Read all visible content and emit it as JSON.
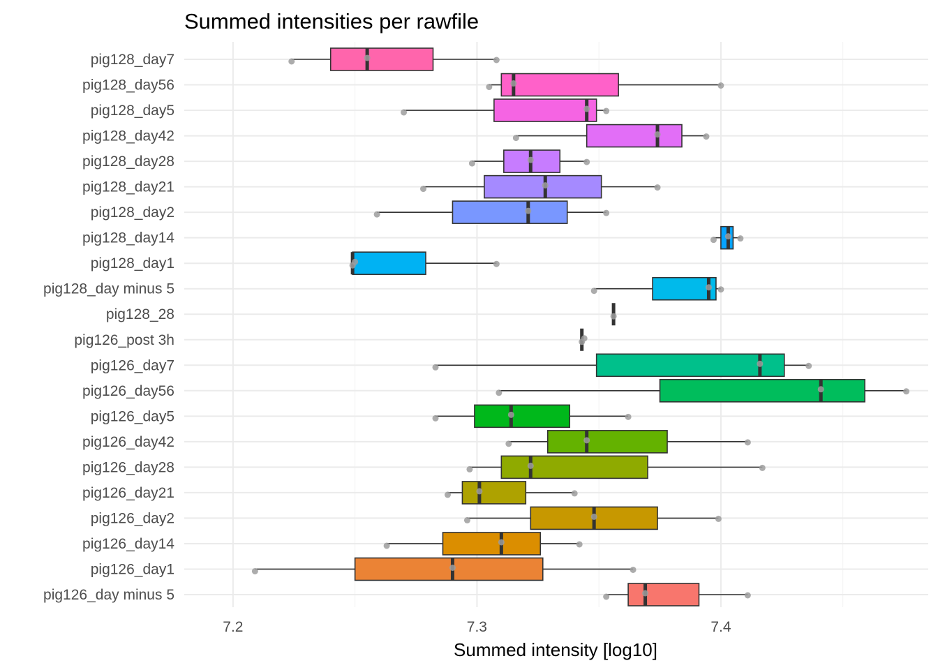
{
  "chart_data": {
    "type": "boxplot",
    "orientation": "horizontal",
    "title": "Summed intensities per rawfile",
    "xlabel": "Summed intensity [log10]",
    "ylabel": "",
    "xlim": [
      7.18,
      7.485
    ],
    "x_ticks": [
      7.2,
      7.3,
      7.4
    ],
    "x_tick_labels": [
      "7.2",
      "7.3",
      "7.4"
    ],
    "grid": true,
    "legend": "none",
    "whisker_color": "#333333",
    "point_color": "#9e9e9e",
    "categories": [
      "pig126_day minus 5",
      "pig126_day1",
      "pig126_day14",
      "pig126_day2",
      "pig126_day21",
      "pig126_day28",
      "pig126_day42",
      "pig126_day5",
      "pig126_day56",
      "pig126_day7",
      "pig126_post 3h",
      "pig128_28",
      "pig128_day minus 5",
      "pig128_day1",
      "pig128_day14",
      "pig128_day2",
      "pig128_day21",
      "pig128_day28",
      "pig128_day42",
      "pig128_day5",
      "pig128_day56",
      "pig128_day7"
    ],
    "series": [
      {
        "name": "pig126_day minus 5",
        "color": "#F8766D",
        "min": 7.353,
        "q1": 7.362,
        "median": 7.369,
        "q3": 7.391,
        "max": 7.411,
        "points": [
          7.353,
          7.369,
          7.411
        ]
      },
      {
        "name": "pig126_day1",
        "color": "#EB8335",
        "min": 7.209,
        "q1": 7.25,
        "median": 7.29,
        "q3": 7.327,
        "max": 7.364,
        "points": [
          7.209,
          7.29,
          7.364
        ]
      },
      {
        "name": "pig126_day14",
        "color": "#DB8E00",
        "min": 7.263,
        "q1": 7.286,
        "median": 7.31,
        "q3": 7.326,
        "max": 7.342,
        "points": [
          7.263,
          7.31,
          7.342
        ]
      },
      {
        "name": "pig126_day2",
        "color": "#C79800",
        "min": 7.296,
        "q1": 7.322,
        "median": 7.348,
        "q3": 7.374,
        "max": 7.399,
        "points": [
          7.296,
          7.348,
          7.399
        ]
      },
      {
        "name": "pig126_day21",
        "color": "#AEA200",
        "min": 7.288,
        "q1": 7.294,
        "median": 7.301,
        "q3": 7.32,
        "max": 7.34,
        "points": [
          7.288,
          7.301,
          7.34
        ]
      },
      {
        "name": "pig126_day28",
        "color": "#8FAA00",
        "min": 7.297,
        "q1": 7.31,
        "median": 7.322,
        "q3": 7.37,
        "max": 7.417,
        "points": [
          7.297,
          7.322,
          7.417
        ]
      },
      {
        "name": "pig126_day42",
        "color": "#64B200",
        "min": 7.313,
        "q1": 7.329,
        "median": 7.345,
        "q3": 7.378,
        "max": 7.411,
        "points": [
          7.313,
          7.345,
          7.411
        ]
      },
      {
        "name": "pig126_day5",
        "color": "#00B81B",
        "min": 7.283,
        "q1": 7.299,
        "median": 7.314,
        "q3": 7.338,
        "max": 7.362,
        "points": [
          7.283,
          7.314,
          7.362
        ]
      },
      {
        "name": "pig126_day56",
        "color": "#00BD5C",
        "min": 7.309,
        "q1": 7.375,
        "median": 7.441,
        "q3": 7.459,
        "max": 7.476,
        "points": [
          7.309,
          7.441,
          7.476
        ]
      },
      {
        "name": "pig126_day7",
        "color": "#00C08B",
        "min": 7.283,
        "q1": 7.349,
        "median": 7.416,
        "q3": 7.426,
        "max": 7.436,
        "points": [
          7.283,
          7.416,
          7.436
        ]
      },
      {
        "name": "pig126_post 3h",
        "color": "#00C1B2",
        "min": 7.343,
        "q1": 7.343,
        "median": 7.343,
        "q3": 7.343,
        "max": 7.343,
        "points": [
          7.343,
          7.344
        ]
      },
      {
        "name": "pig128_28",
        "color": "#00BFD4",
        "min": 7.356,
        "q1": 7.356,
        "median": 7.356,
        "q3": 7.356,
        "max": 7.356,
        "points": [
          7.356
        ]
      },
      {
        "name": "pig128_day minus 5",
        "color": "#00BAEB",
        "min": 7.348,
        "q1": 7.372,
        "median": 7.395,
        "q3": 7.398,
        "max": 7.4,
        "points": [
          7.348,
          7.395,
          7.4
        ]
      },
      {
        "name": "pig128_day1",
        "color": "#00B2F3",
        "min": 7.249,
        "q1": 7.249,
        "median": 7.249,
        "q3": 7.279,
        "max": 7.308,
        "points": [
          7.249,
          7.25,
          7.308
        ]
      },
      {
        "name": "pig128_day14",
        "color": "#06A4FF",
        "min": 7.397,
        "q1": 7.4,
        "median": 7.403,
        "q3": 7.405,
        "max": 7.408,
        "points": [
          7.397,
          7.403,
          7.408
        ]
      },
      {
        "name": "pig128_day2",
        "color": "#7997FF",
        "min": 7.259,
        "q1": 7.29,
        "median": 7.321,
        "q3": 7.337,
        "max": 7.353,
        "points": [
          7.259,
          7.321,
          7.353
        ]
      },
      {
        "name": "pig128_day21",
        "color": "#A58AFF",
        "min": 7.278,
        "q1": 7.303,
        "median": 7.328,
        "q3": 7.351,
        "max": 7.374,
        "points": [
          7.278,
          7.328,
          7.374
        ]
      },
      {
        "name": "pig128_day28",
        "color": "#C77CFF",
        "min": 7.298,
        "q1": 7.311,
        "median": 7.322,
        "q3": 7.334,
        "max": 7.345,
        "points": [
          7.298,
          7.322,
          7.345
        ]
      },
      {
        "name": "pig128_day42",
        "color": "#E26EF7",
        "min": 7.316,
        "q1": 7.345,
        "median": 7.374,
        "q3": 7.384,
        "max": 7.394,
        "points": [
          7.316,
          7.374,
          7.394
        ]
      },
      {
        "name": "pig128_day5",
        "color": "#F564E3",
        "min": 7.27,
        "q1": 7.307,
        "median": 7.345,
        "q3": 7.349,
        "max": 7.353,
        "points": [
          7.27,
          7.345,
          7.353
        ]
      },
      {
        "name": "pig128_day56",
        "color": "#FF61C9",
        "min": 7.305,
        "q1": 7.31,
        "median": 7.315,
        "q3": 7.358,
        "max": 7.4,
        "points": [
          7.305,
          7.315,
          7.4
        ]
      },
      {
        "name": "pig128_day7",
        "color": "#FF65AC",
        "min": 7.224,
        "q1": 7.24,
        "median": 7.255,
        "q3": 7.282,
        "max": 7.308,
        "points": [
          7.224,
          7.255,
          7.308
        ]
      }
    ]
  }
}
